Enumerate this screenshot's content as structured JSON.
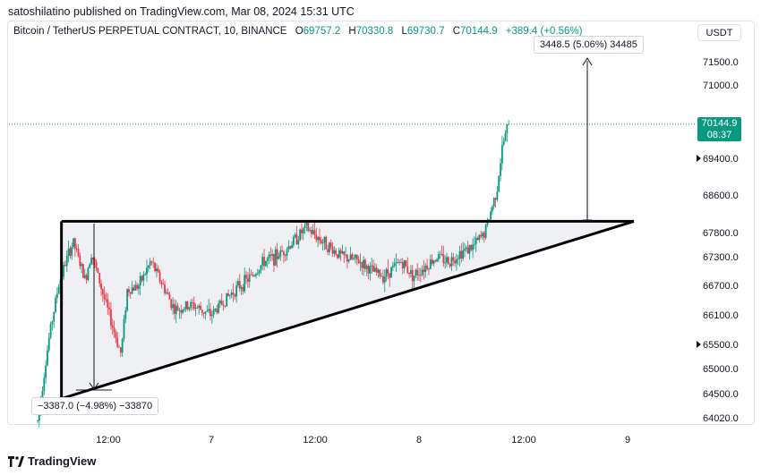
{
  "publisher": "satoshilatino published on TradingView.com, Mar 08, 2024 15:31 UTC",
  "legend": {
    "symbol": "Bitcoin / TetherUS PERPETUAL CONTRACT, 10, BINANCE",
    "o_label": "O",
    "o_value": "69757.2",
    "h_label": "H",
    "h_value": "70330.8",
    "l_label": "L",
    "l_value": "69730.7",
    "c_label": "C",
    "c_value": "70144.9",
    "change": "+389.4 (+0.56%)"
  },
  "currency": "USDT",
  "last_price": {
    "price": "70144.9",
    "countdown": "08:37"
  },
  "measure_up": "3448.5 (5.06%) 34485",
  "measure_down": "−3387.0 (−4.98%) −33870",
  "price_axis": [
    "71500.0",
    "71000.0",
    "69400.0",
    "68600.0",
    "67800.0",
    "67300.0",
    "66700.0",
    "66100.0",
    "65500.0",
    "65000.0",
    "64500.0",
    "64020.0"
  ],
  "time_axis": [
    "12:00",
    "7",
    "12:00",
    "8",
    "12:00",
    "9"
  ],
  "brand": "TradingView",
  "colors": {
    "up": "#089981",
    "down": "#f23645",
    "line": "#000000",
    "fill": "#eef0f3"
  },
  "chart_data": {
    "type": "candlestick",
    "price_ticks": [
      71500,
      71000,
      69400,
      68600,
      67800,
      67300,
      66700,
      66100,
      65500,
      65000,
      64500,
      64020
    ],
    "time_ticks": [
      "12:00",
      "7",
      "12:00",
      "8",
      "12:00",
      "9"
    ],
    "last_close": 70144.9,
    "pattern": {
      "resistance": [
        [
          0.04,
          68040
        ],
        [
          1,
          68040
        ]
      ],
      "support": [
        [
          0.04,
          64400
        ],
        [
          1,
          68040
        ]
      ]
    },
    "path": [
      [
        0,
        63950
      ],
      [
        0.02,
        65700
      ],
      [
        0.035,
        66700
      ],
      [
        0.05,
        67300
      ],
      [
        0.06,
        67600
      ],
      [
        0.08,
        66800
      ],
      [
        0.09,
        67400
      ],
      [
        0.11,
        66500
      ],
      [
        0.13,
        65700
      ],
      [
        0.14,
        65300
      ],
      [
        0.15,
        66600
      ],
      [
        0.17,
        66700
      ],
      [
        0.19,
        67200
      ],
      [
        0.21,
        66700
      ],
      [
        0.23,
        66200
      ],
      [
        0.26,
        66300
      ],
      [
        0.29,
        66100
      ],
      [
        0.33,
        66600
      ],
      [
        0.36,
        66900
      ],
      [
        0.38,
        67200
      ],
      [
        0.4,
        67300
      ],
      [
        0.42,
        67500
      ],
      [
        0.45,
        67900
      ],
      [
        0.48,
        67600
      ],
      [
        0.51,
        67300
      ],
      [
        0.54,
        67200
      ],
      [
        0.56,
        67000
      ],
      [
        0.58,
        66900
      ],
      [
        0.61,
        67200
      ],
      [
        0.63,
        66900
      ],
      [
        0.65,
        67100
      ],
      [
        0.67,
        67300
      ],
      [
        0.69,
        67200
      ],
      [
        0.71,
        67400
      ],
      [
        0.73,
        67500
      ],
      [
        0.75,
        67800
      ],
      [
        0.77,
        68700
      ],
      [
        0.78,
        69700
      ],
      [
        0.79,
        70145
      ]
    ]
  }
}
